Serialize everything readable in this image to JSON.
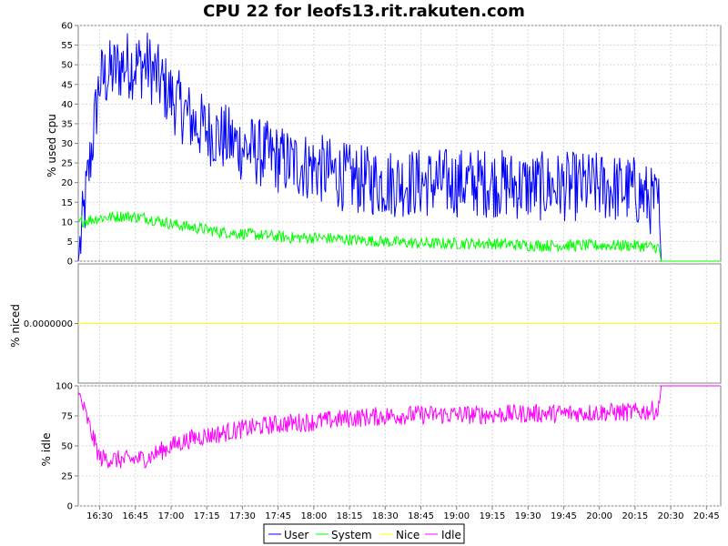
{
  "chart_data": {
    "type": "line",
    "title": "CPU 22 for leofs13.rit.rakuten.com",
    "x_ticks": [
      "16:30",
      "16:45",
      "17:00",
      "17:15",
      "17:30",
      "17:45",
      "18:00",
      "18:15",
      "18:30",
      "18:45",
      "19:00",
      "19:15",
      "19:30",
      "19:45",
      "20:00",
      "20:15",
      "20:30",
      "20:45"
    ],
    "x_range": [
      "16:21",
      "20:51"
    ],
    "data_end": "20:25",
    "panels": [
      {
        "id": "used",
        "ylabel": "% used cpu",
        "ylim": [
          0,
          60
        ],
        "y_ticks": [
          "0",
          "5",
          "10",
          "15",
          "20",
          "25",
          "30",
          "35",
          "40",
          "45",
          "50",
          "55",
          "60"
        ],
        "series": [
          {
            "name": "User",
            "color": "#0000ff",
            "x": [
              "16:21",
              "16:30",
              "16:40",
              "16:50",
              "17:00",
              "17:10",
              "17:20",
              "17:30",
              "17:40",
              "17:50",
              "18:00",
              "18:15",
              "18:30",
              "18:45",
              "19:00",
              "19:15",
              "19:30",
              "19:45",
              "20:00",
              "20:15",
              "20:25",
              "20:26",
              "20:51"
            ],
            "values": [
              0,
              46,
              50,
              50,
              42,
              35,
              32,
              29,
              27,
              25,
              24,
              21,
              20,
              20,
              20,
              20,
              19,
              19,
              19,
              18,
              14,
              0,
              0
            ],
            "noise": 9
          },
          {
            "name": "System",
            "color": "#00ff00",
            "x": [
              "16:21",
              "16:30",
              "16:40",
              "16:50",
              "17:00",
              "17:10",
              "17:20",
              "17:30",
              "17:40",
              "17:50",
              "18:00",
              "18:15",
              "18:30",
              "18:45",
              "19:00",
              "19:15",
              "19:30",
              "19:45",
              "20:00",
              "20:15",
              "20:25",
              "20:26",
              "20:51"
            ],
            "values": [
              10,
              11,
              11.5,
              11,
              9.5,
              8.5,
              7.5,
              7,
              6.5,
              6,
              6,
              5.5,
              5,
              4.5,
              4.5,
              4.5,
              4,
              4,
              4,
              4,
              3.5,
              0,
              0
            ],
            "noise": 1.5
          }
        ]
      },
      {
        "id": "niced",
        "ylabel": "% niced",
        "y_ticks": [
          "0.0000000"
        ],
        "series": [
          {
            "name": "Nice",
            "color": "#ffff00",
            "x": [
              "16:21",
              "20:51"
            ],
            "values": [
              0,
              0
            ],
            "noise": 0
          }
        ]
      },
      {
        "id": "idle",
        "ylabel": "% idle",
        "ylim": [
          0,
          100
        ],
        "y_ticks": [
          "0",
          "25",
          "50",
          "75",
          "100"
        ],
        "series": [
          {
            "name": "Idle",
            "color": "#ff00ff",
            "x": [
              "16:21",
              "16:30",
              "16:40",
              "16:50",
              "17:00",
              "17:10",
              "17:20",
              "17:30",
              "17:40",
              "17:50",
              "18:00",
              "18:15",
              "18:30",
              "18:45",
              "19:00",
              "19:15",
              "19:30",
              "19:45",
              "20:00",
              "20:15",
              "20:25",
              "20:26",
              "20:51"
            ],
            "values": [
              95,
              40,
              38,
              40,
              50,
              57,
              60,
              64,
              67,
              69,
              70,
              73,
              75,
              76,
              76,
              76,
              77,
              77,
              78,
              78,
              80,
              100,
              100
            ],
            "noise": 8
          }
        ]
      }
    ],
    "legend": [
      "User",
      "System",
      "Nice",
      "Idle"
    ],
    "legend_position": "bottom",
    "grid": true
  }
}
